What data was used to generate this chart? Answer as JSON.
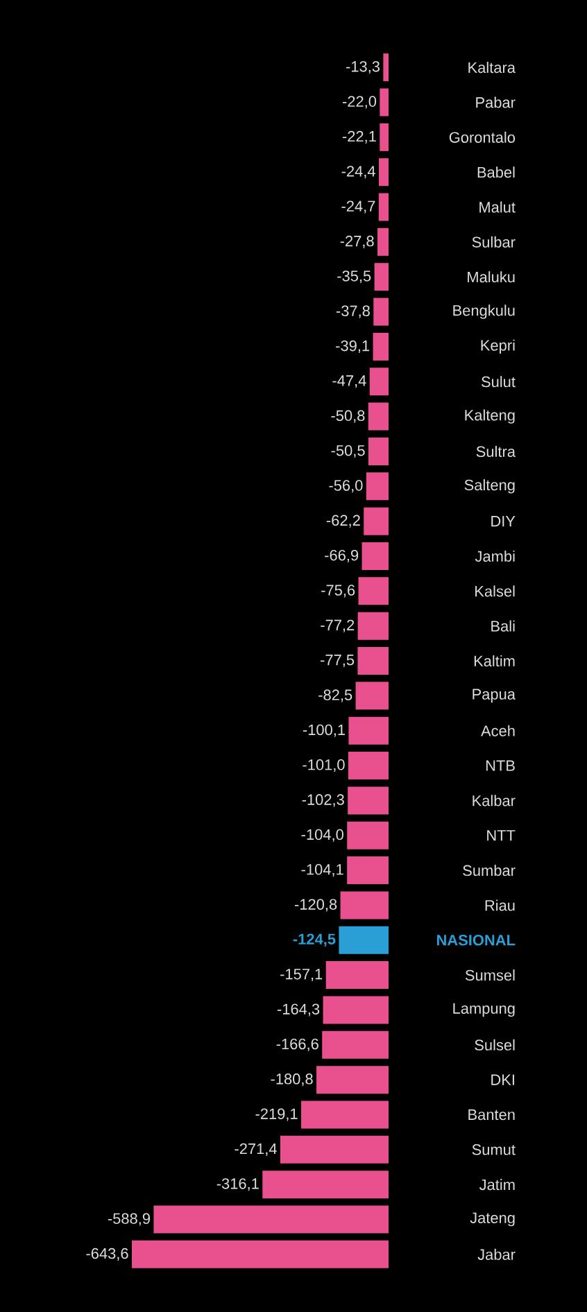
{
  "chart_data": {
    "type": "bar",
    "orientation": "horizontal",
    "categories": [
      "Kaltara",
      "Pabar",
      "Gorontalo",
      "Babel",
      "Malut",
      "Sulbar",
      "Maluku",
      "Bengkulu",
      "Kepri",
      "Sulut",
      "Kalteng",
      "Sultra",
      "Salteng",
      "DIY",
      "Jambi",
      "Kalsel",
      "Bali",
      "Kaltim",
      "Papua",
      "Aceh",
      "NTB",
      "Kalbar",
      "NTT",
      "Sumbar",
      "Riau",
      "NASIONAL",
      "Sumsel",
      "Lampung",
      "Sulsel",
      "DKI",
      "Banten",
      "Sumut",
      "Jatim",
      "Jateng",
      "Jabar"
    ],
    "values": [
      -13.3,
      -22.0,
      -22.1,
      -24.4,
      -24.7,
      -27.8,
      -35.5,
      -37.8,
      -39.1,
      -47.4,
      -50.8,
      -50.5,
      -56.0,
      -62.2,
      -66.9,
      -75.6,
      -77.2,
      -77.5,
      -82.5,
      -100.1,
      -101.0,
      -102.3,
      -104.0,
      -104.1,
      -120.8,
      -124.5,
      -157.1,
      -164.3,
      -166.6,
      -180.8,
      -219.1,
      -271.4,
      -316.1,
      -588.9,
      -643.6
    ],
    "value_labels": [
      "-13,3",
      "-22,0",
      "-22,1",
      "-24,4",
      "-24,7",
      "-27,8",
      "-35,5",
      "-37,8",
      "-39,1",
      "-47,4",
      "-50,8",
      "-50,5",
      "-56,0",
      "-62,2",
      "-66,9",
      "-75,6",
      "-77,2",
      "-77,5",
      "-82,5",
      "-100,1",
      "-101,0",
      "-102,3",
      "-104,0",
      "-104,1",
      "-120,8",
      "-124,5",
      "-157,1",
      "-164,3",
      "-166,6",
      "-180,8",
      "-219,1",
      "-271,4",
      "-316,1",
      "-588,9",
      "-643,6"
    ],
    "colors": [
      "#e8508e",
      "#e8508e",
      "#e8508e",
      "#e8508e",
      "#e8508e",
      "#e8508e",
      "#e8508e",
      "#e8508e",
      "#e8508e",
      "#e8508e",
      "#e8508e",
      "#e8508e",
      "#e8508e",
      "#e8508e",
      "#e8508e",
      "#e8508e",
      "#e8508e",
      "#e8508e",
      "#e8508e",
      "#e8508e",
      "#e8508e",
      "#e8508e",
      "#e8508e",
      "#e8508e",
      "#e8508e",
      "#2a9fd6",
      "#e8508e",
      "#e8508e",
      "#e8508e",
      "#e8508e",
      "#e8508e",
      "#e8508e",
      "#e8508e",
      "#e8508e",
      "#e8508e"
    ]
  }
}
